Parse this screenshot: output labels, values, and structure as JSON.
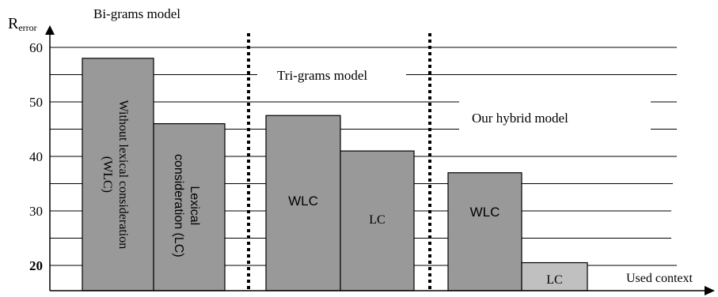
{
  "chart_data": {
    "type": "bar",
    "ylabel_main": "R",
    "ylabel_sub": "error",
    "xlabel": "Used context",
    "yticks": [
      "60",
      "50",
      "40",
      "30",
      "20"
    ],
    "ylim": [
      17,
      62
    ],
    "grid": true,
    "groups": [
      {
        "title": "Bi-grams model",
        "bars": [
          {
            "label": "Without lexical consideration (WLC)",
            "value": 58
          },
          {
            "label": "Lexical consideration (LC)",
            "value": 46
          }
        ]
      },
      {
        "title": "Tri-grams model",
        "bars": [
          {
            "label": "WLC",
            "value": 47.5
          },
          {
            "label": "LC",
            "value": 41
          }
        ]
      },
      {
        "title": "Our hybrid model",
        "bars": [
          {
            "label": "WLC",
            "value": 37
          },
          {
            "label": "LC",
            "value": 20.5
          }
        ]
      }
    ],
    "colors": {
      "bar": "#999999",
      "bar_highlight": "#c0c0c0",
      "grid": "#000000"
    }
  }
}
